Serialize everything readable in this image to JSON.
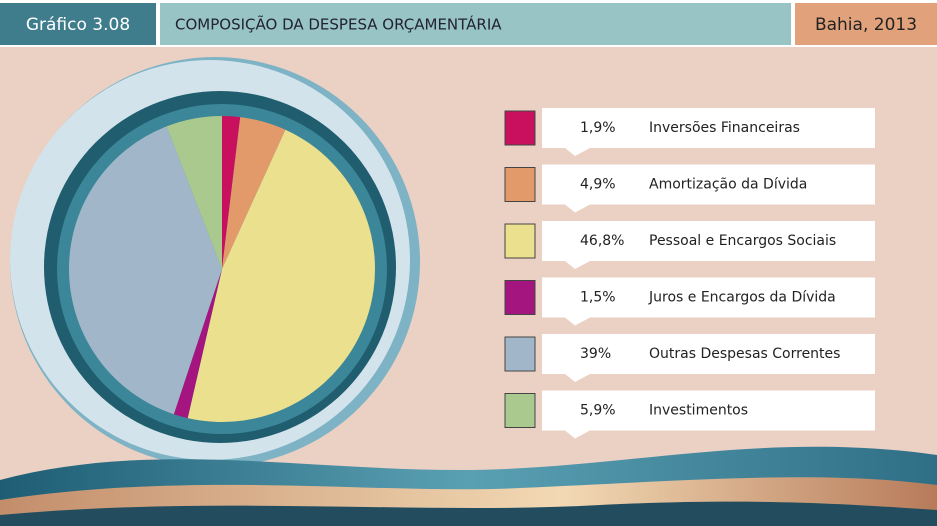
{
  "chart_data": {
    "type": "pie",
    "label": "Gráfico 3.08",
    "title": "COMPOSIÇÃO DA DESPESA ORÇAMENTÁRIA",
    "subtitle": "Bahia, 2013",
    "categories": [
      "Inversões Financeiras",
      "Amortização da Dívida",
      "Pessoal e Encargos Sociais",
      "Juros e Encargos da Dívida",
      "Outras Despesas Correntes",
      "Investimentos"
    ],
    "values": [
      1.9,
      4.9,
      46.8,
      1.5,
      39,
      5.9
    ],
    "value_labels": [
      "1,9%",
      "4,9%",
      "46,8%",
      "1,5%",
      "39%",
      "5,9%"
    ],
    "colors": [
      "#c8105e",
      "#e39a6a",
      "#ebe08e",
      "#a4157f",
      "#a1b7c9",
      "#a9c98f"
    ]
  }
}
